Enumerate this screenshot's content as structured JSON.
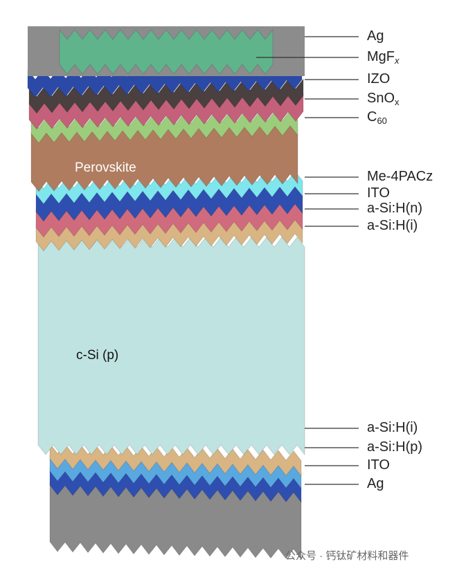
{
  "labels": [
    {
      "text": "Ag"
    },
    {
      "text": "MgF",
      "sub": "x"
    },
    {
      "text": "IZO"
    },
    {
      "text": "SnO",
      "sub": "x"
    },
    {
      "text": "C",
      "sub": "60"
    },
    {
      "text": "Me-4PACz"
    },
    {
      "text": "ITO"
    },
    {
      "text": "a-Si:H(n)"
    },
    {
      "text": "a-Si:H(i)"
    },
    {
      "text": "a-Si:H(i)"
    },
    {
      "text": "a-Si:H(p)"
    },
    {
      "text": "ITO"
    },
    {
      "text": "Ag"
    }
  ],
  "inner_labels": {
    "perovskite": "Perovskite",
    "c_si": "c-Si (p)"
  },
  "watermark": "公众号 · 钙钛矿材料和器件"
}
